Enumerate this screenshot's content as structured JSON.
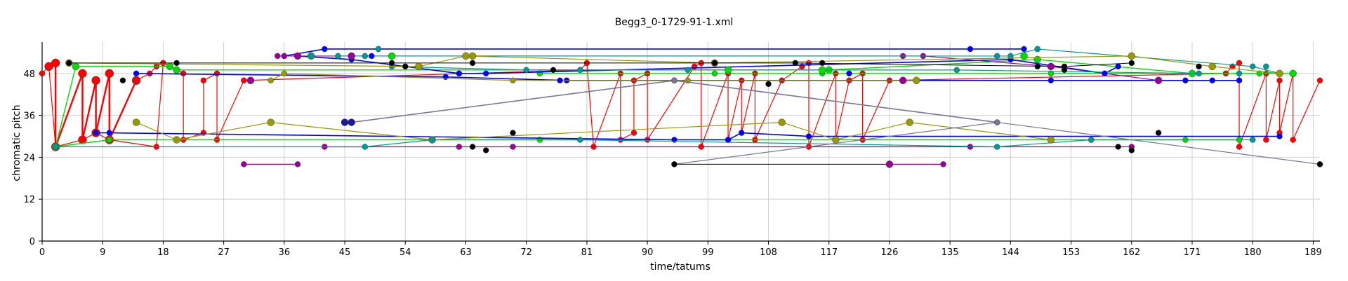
{
  "chart_data": {
    "type": "line",
    "title": "Begg3_0-1729-91-1.xml",
    "xlabel": "time/tatums",
    "ylabel": "chromatic pitch",
    "xlim": [
      0,
      190
    ],
    "ylim": [
      0,
      57
    ],
    "xticks": [
      0,
      9,
      18,
      27,
      36,
      45,
      54,
      63,
      72,
      81,
      90,
      99,
      108,
      117,
      126,
      135,
      144,
      153,
      162,
      171,
      180,
      189
    ],
    "yticks": [
      0,
      12,
      24,
      36,
      48
    ],
    "grid": true,
    "colors": {
      "red": "#ff0000",
      "green": "#00dd00",
      "blue": "#0000ff",
      "purple": "#990099",
      "teal": "#009999",
      "olive": "#999900",
      "navy": "#1a1a99",
      "black": "#000000",
      "gray": "#777799"
    },
    "series": [
      {
        "color": "#ff0000",
        "width": 1.2,
        "r": 4,
        "points": [
          [
            0,
            48
          ],
          [
            1,
            50
          ],
          [
            2,
            27
          ],
          [
            6,
            29
          ],
          [
            8,
            31
          ],
          [
            10,
            29
          ],
          [
            17,
            27
          ],
          [
            18,
            51
          ],
          [
            21,
            48
          ],
          [
            21,
            29
          ],
          [
            24,
            31
          ],
          [
            24,
            46
          ],
          [
            26,
            48
          ],
          [
            26,
            29
          ],
          [
            30,
            46
          ],
          [
            80,
            49
          ],
          [
            81,
            51
          ],
          [
            82,
            27
          ],
          [
            86,
            48
          ],
          [
            86,
            29
          ],
          [
            88,
            31
          ],
          [
            88,
            46
          ],
          [
            90,
            48
          ],
          [
            90,
            29
          ],
          [
            97,
            50
          ],
          [
            98,
            51
          ],
          [
            98,
            27
          ],
          [
            102,
            48
          ],
          [
            102,
            29
          ],
          [
            104,
            46
          ],
          [
            104,
            31
          ],
          [
            106,
            48
          ],
          [
            106,
            29
          ],
          [
            110,
            46
          ],
          [
            113,
            50
          ],
          [
            114,
            51
          ],
          [
            114,
            27
          ],
          [
            118,
            48
          ],
          [
            118,
            29
          ],
          [
            120,
            46
          ],
          [
            122,
            48
          ],
          [
            122,
            29
          ],
          [
            126,
            46
          ],
          [
            176,
            48
          ],
          [
            177,
            50
          ],
          [
            178,
            51
          ],
          [
            178,
            27
          ],
          [
            182,
            48
          ],
          [
            182,
            29
          ],
          [
            184,
            46
          ],
          [
            184,
            31
          ],
          [
            186,
            48
          ],
          [
            186,
            29
          ],
          [
            190,
            46
          ]
        ]
      },
      {
        "color": "#ff0000",
        "width": 2.4,
        "r": 6,
        "points": [
          [
            1,
            50
          ],
          [
            2,
            51
          ],
          [
            2,
            27
          ],
          [
            6,
            48
          ],
          [
            6,
            29
          ],
          [
            8,
            46
          ],
          [
            8,
            31
          ],
          [
            10,
            48
          ],
          [
            10,
            29
          ],
          [
            14,
            46
          ]
        ]
      },
      {
        "color": "#ff0000",
        "width": 1.2,
        "r": 4,
        "points": [
          [
            14,
            46
          ],
          [
            16,
            48
          ],
          [
            17,
            50
          ],
          [
            18,
            51
          ]
        ]
      },
      {
        "color": "#00dd00",
        "width": 1.4,
        "r": 5,
        "points": [
          [
            2,
            27
          ],
          [
            5,
            50
          ],
          [
            19,
            50
          ],
          [
            20,
            49
          ],
          [
            117,
            49
          ],
          [
            148,
            52
          ],
          [
            171,
            48
          ],
          [
            186,
            48
          ]
        ]
      },
      {
        "color": "#00dd00",
        "width": 1.4,
        "r": 4,
        "points": [
          [
            2,
            27
          ],
          [
            10,
            29
          ],
          [
            74,
            29
          ],
          [
            170,
            29
          ],
          [
            178,
            29
          ]
        ]
      },
      {
        "color": "#00dd00",
        "width": 1.4,
        "r": 4,
        "points": [
          [
            74,
            48
          ],
          [
            100,
            48
          ],
          [
            116,
            48
          ],
          [
            150,
            48
          ],
          [
            181,
            48
          ]
        ]
      },
      {
        "color": "#0000ff",
        "width": 1.6,
        "r": 4,
        "points": [
          [
            36,
            53
          ],
          [
            42,
            55
          ],
          [
            50,
            55
          ],
          [
            138,
            55
          ],
          [
            146,
            55
          ]
        ]
      },
      {
        "color": "#0000ff",
        "width": 1.6,
        "r": 4,
        "points": [
          [
            8,
            31
          ],
          [
            10,
            31
          ],
          [
            94,
            29
          ],
          [
            102,
            29
          ],
          [
            104,
            31
          ],
          [
            114,
            30
          ],
          [
            184,
            30
          ]
        ]
      },
      {
        "color": "#0000ff",
        "width": 1.6,
        "r": 4,
        "points": [
          [
            14,
            48
          ],
          [
            60,
            47
          ],
          [
            78,
            46
          ],
          [
            94,
            46
          ],
          [
            150,
            46
          ],
          [
            178,
            46
          ]
        ]
      },
      {
        "color": "#0000ff",
        "width": 1.6,
        "r": 4,
        "points": [
          [
            38,
            53
          ],
          [
            46,
            52
          ],
          [
            62,
            48
          ],
          [
            66,
            48
          ],
          [
            144,
            52
          ],
          [
            158,
            48
          ],
          [
            160,
            50
          ]
        ]
      },
      {
        "color": "#990099",
        "width": 1.2,
        "r": 4,
        "points": [
          [
            30,
            22
          ],
          [
            38,
            22
          ]
        ]
      },
      {
        "color": "#990099",
        "width": 1.2,
        "r": 4,
        "points": [
          [
            126,
            22
          ],
          [
            134,
            22
          ]
        ]
      },
      {
        "color": "#990099",
        "width": 1.2,
        "r": 4,
        "points": [
          [
            35,
            53
          ],
          [
            36,
            53
          ],
          [
            128,
            53
          ],
          [
            131,
            53
          ],
          [
            150,
            50
          ],
          [
            166,
            46
          ]
        ]
      },
      {
        "color": "#990099",
        "width": 1.2,
        "r": 4,
        "points": [
          [
            42,
            27
          ],
          [
            62,
            27
          ],
          [
            70,
            27
          ],
          [
            138,
            27
          ],
          [
            162,
            27
          ]
        ]
      },
      {
        "color": "#009999",
        "width": 1.2,
        "r": 4,
        "points": [
          [
            2,
            27
          ],
          [
            48,
            27
          ],
          [
            58,
            29
          ],
          [
            80,
            29
          ],
          [
            142,
            27
          ],
          [
            156,
            29
          ],
          [
            180,
            29
          ]
        ]
      },
      {
        "color": "#009999",
        "width": 1.2,
        "r": 4,
        "points": [
          [
            44,
            53
          ],
          [
            48,
            53
          ],
          [
            144,
            53
          ],
          [
            148,
            55
          ],
          [
            180,
            50
          ],
          [
            184,
            48
          ]
        ]
      },
      {
        "color": "#009999",
        "width": 1.2,
        "r": 4,
        "points": [
          [
            52,
            50
          ],
          [
            72,
            49
          ],
          [
            96,
            49
          ],
          [
            136,
            49
          ],
          [
            172,
            48
          ]
        ]
      },
      {
        "color": "#999900",
        "width": 1.2,
        "r": 5,
        "points": [
          [
            14,
            34
          ],
          [
            20,
            29
          ],
          [
            34,
            34
          ],
          [
            58,
            29
          ],
          [
            110,
            34
          ],
          [
            118,
            29
          ],
          [
            129,
            34
          ],
          [
            150,
            29
          ]
        ]
      },
      {
        "color": "#999900",
        "width": 1.2,
        "r": 5,
        "points": [
          [
            4,
            51
          ],
          [
            56,
            50
          ],
          [
            63,
            53
          ],
          [
            100,
            51
          ],
          [
            162,
            53
          ],
          [
            174,
            50
          ],
          [
            184,
            48
          ]
        ]
      },
      {
        "color": "#999900",
        "width": 1.2,
        "r": 4,
        "points": [
          [
            34,
            46
          ],
          [
            36,
            48
          ],
          [
            70,
            46
          ],
          [
            96,
            46
          ],
          [
            130,
            46
          ]
        ]
      },
      {
        "color": "#777799",
        "width": 1.6,
        "r": 4,
        "points": [
          [
            46,
            34
          ],
          [
            94,
            46
          ],
          [
            142,
            34
          ]
        ]
      },
      {
        "color": "#777799",
        "width": 1.2,
        "r": 4,
        "points": [
          [
            94,
            46
          ],
          [
            190,
            22
          ]
        ]
      },
      {
        "color": "#777799",
        "width": 1.2,
        "r": 4,
        "points": [
          [
            94,
            22
          ],
          [
            142,
            34
          ]
        ]
      },
      {
        "color": "#1a1a99",
        "width": 1.8,
        "r": 5,
        "points": [
          [
            45,
            34
          ],
          [
            46,
            34
          ]
        ]
      },
      {
        "color": "#000000",
        "width": 1.0,
        "r": 4,
        "points": [
          [
            4,
            51
          ],
          [
            20,
            51
          ],
          [
            52,
            51
          ],
          [
            64,
            51
          ],
          [
            112,
            51
          ],
          [
            152,
            50
          ],
          [
            162,
            51
          ]
        ]
      },
      {
        "color": "#000000",
        "width": 1.0,
        "r": 4,
        "points": [
          [
            94,
            22
          ],
          [
            126,
            22
          ]
        ]
      }
    ],
    "markers": [
      {
        "color": "#000000",
        "r": 4,
        "points": [
          [
            12,
            46
          ],
          [
            54,
            50
          ],
          [
            64,
            27
          ],
          [
            66,
            26
          ],
          [
            70,
            31
          ],
          [
            76,
            49
          ],
          [
            100,
            51
          ],
          [
            108,
            45
          ],
          [
            116,
            51
          ],
          [
            148,
            50
          ],
          [
            152,
            49
          ],
          [
            160,
            27
          ],
          [
            162,
            26
          ],
          [
            166,
            31
          ],
          [
            172,
            50
          ],
          [
            190,
            22
          ]
        ]
      },
      {
        "color": "#0000ff",
        "r": 4,
        "points": [
          [
            40,
            53
          ],
          [
            49,
            53
          ],
          [
            62,
            48
          ],
          [
            77,
            46
          ],
          [
            102,
            29
          ],
          [
            120,
            48
          ],
          [
            158,
            48
          ],
          [
            170,
            46
          ],
          [
            174,
            46
          ]
        ]
      },
      {
        "color": "#00dd00",
        "r": 5,
        "points": [
          [
            40,
            53
          ],
          [
            52,
            53
          ],
          [
            102,
            49
          ],
          [
            116,
            49
          ],
          [
            146,
            53
          ]
        ]
      },
      {
        "color": "#990099",
        "r": 5,
        "points": [
          [
            31,
            46
          ],
          [
            38,
            53
          ],
          [
            46,
            53
          ],
          [
            126,
            22
          ],
          [
            128,
            46
          ],
          [
            150,
            50
          ],
          [
            166,
            46
          ]
        ]
      },
      {
        "color": "#009999",
        "r": 4,
        "points": [
          [
            40,
            53
          ],
          [
            50,
            55
          ],
          [
            58,
            29
          ],
          [
            80,
            49
          ],
          [
            142,
            53
          ],
          [
            148,
            55
          ],
          [
            156,
            29
          ],
          [
            178,
            48
          ],
          [
            182,
            50
          ]
        ]
      },
      {
        "color": "#999900",
        "r": 5,
        "points": [
          [
            56,
            50
          ],
          [
            64,
            53
          ],
          [
            130,
            46
          ]
        ]
      }
    ]
  }
}
